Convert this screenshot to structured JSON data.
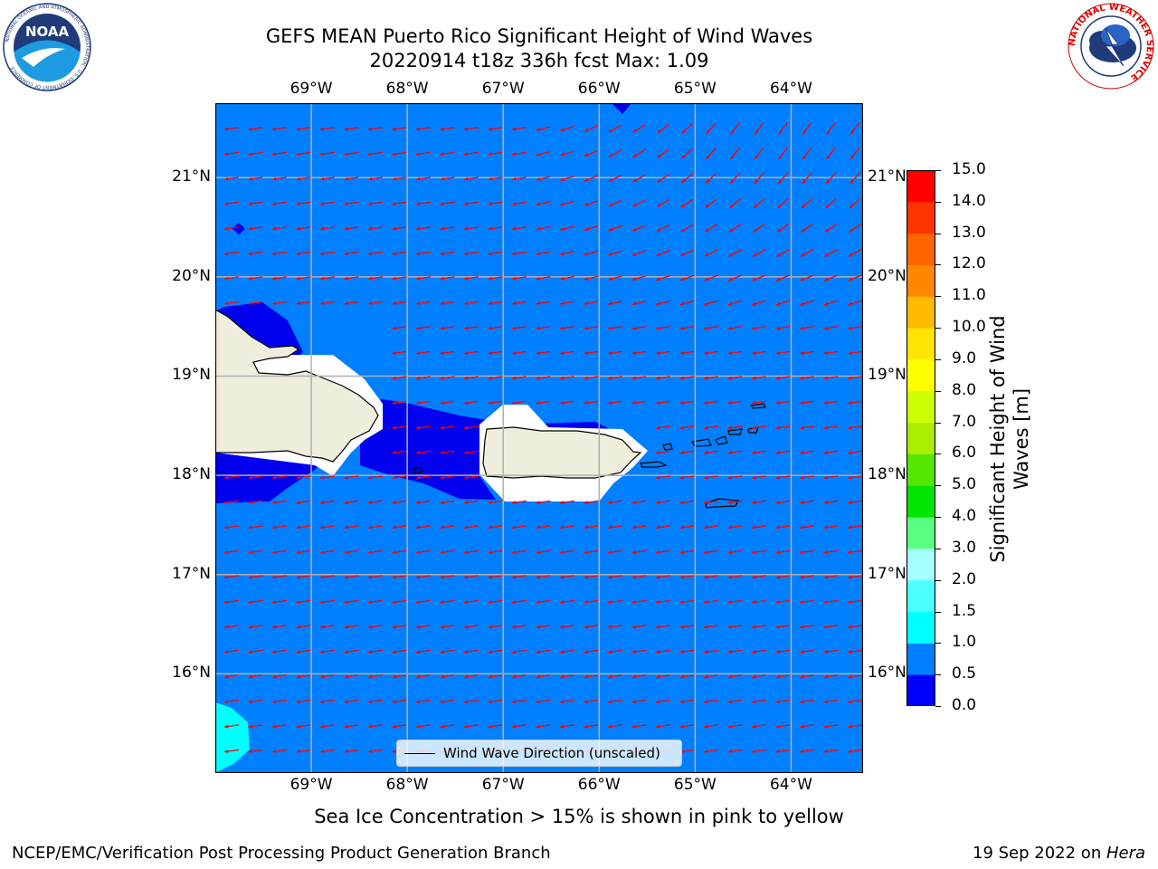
{
  "header": {
    "title_line1": "GEFS MEAN Puerto Rico Significant Height of Wind Waves",
    "title_line2": "20220914 t18z 336h fcst   Max: 1.09"
  },
  "logos": {
    "left": "NOAA",
    "left_ring_text": "NATIONAL OCEANIC AND ATMOSPHERIC ADMINISTRATION · U.S. DEPARTMENT OF COMMERCE",
    "right_ring_text": "NATIONAL WEATHER SERVICE"
  },
  "map": {
    "lon_labels": [
      "69°W",
      "68°W",
      "67°W",
      "66°W",
      "65°W",
      "64°W"
    ],
    "lat_labels": [
      "21°N",
      "20°N",
      "19°N",
      "18°N",
      "17°N",
      "16°N"
    ],
    "lon_values": [
      -69,
      -68,
      -67,
      -66,
      -65,
      -64
    ],
    "lat_values": [
      21,
      20,
      19,
      18,
      17,
      16
    ],
    "extent": {
      "lon": [
        -70.0,
        -63.25
      ],
      "lat": [
        15.0,
        21.75
      ]
    },
    "arrow_color": "#ff0000",
    "colors": {
      "ocean_main": "#0080ff",
      "ocean_low": "#0000ee",
      "ocean_mid": "#00ffff",
      "land": "#efeedd"
    }
  },
  "legend": {
    "label": "Wind Wave Direction (unscaled)"
  },
  "colorbar": {
    "title_line1": "Significant Height of Wind",
    "title_line2": "Waves [m]",
    "ticks": [
      "15.0",
      "14.0",
      "13.0",
      "12.0",
      "11.0",
      "10.0",
      "9.0",
      "8.0",
      "7.0",
      "6.0",
      "5.0",
      "4.0",
      "3.0",
      "2.0",
      "1.5",
      "1.0",
      "0.5",
      "0.0"
    ],
    "levels": [
      0.0,
      0.5,
      1.0,
      1.5,
      2.0,
      3.0,
      4.0,
      5.0,
      6.0,
      7.0,
      8.0,
      9.0,
      10.0,
      11.0,
      12.0,
      13.0,
      14.0,
      15.0
    ],
    "colors": [
      "#0000ff",
      "#0080ff",
      "#00ffff",
      "#4dffff",
      "#a6ffff",
      "#59ff80",
      "#00e600",
      "#55e600",
      "#aaee00",
      "#ccff00",
      "#ffff00",
      "#ffe600",
      "#ffbb00",
      "#ff8800",
      "#ff6600",
      "#ff3300",
      "#ff0000"
    ]
  },
  "subtitle": "Sea Ice Concentration > 15% is shown in pink to yellow",
  "footer": {
    "left": "NCEP/EMC/Verification Post Processing Product Generation Branch",
    "right_prefix": "19 Sep 2022 on ",
    "right_host": "Hera"
  }
}
